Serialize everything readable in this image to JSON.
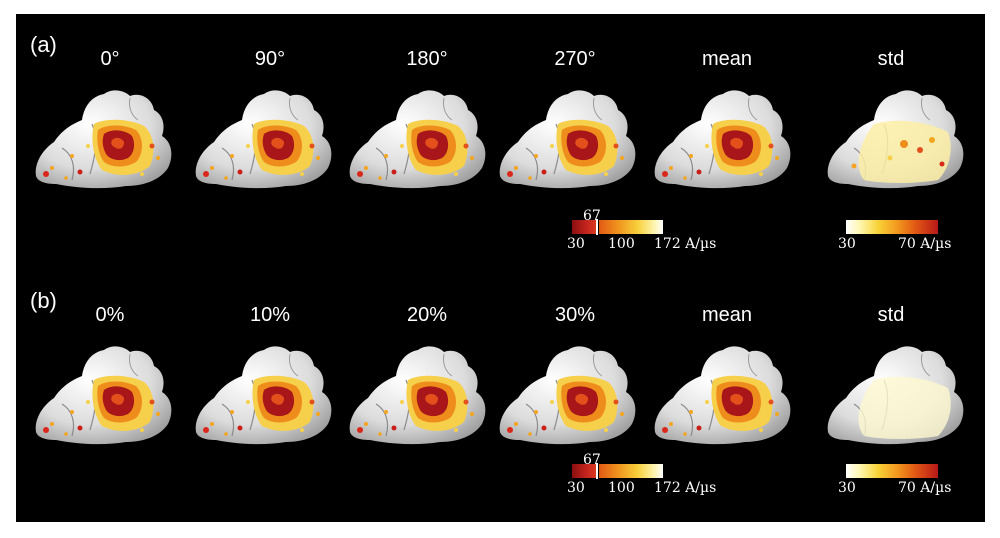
{
  "figure": {
    "rows": [
      {
        "label": "(a)",
        "columns": [
          "0°",
          "90°",
          "180°",
          "270°",
          "mean",
          "std"
        ]
      },
      {
        "label": "(b)",
        "columns": [
          "0%",
          "10%",
          "20%",
          "30%",
          "mean",
          "std"
        ]
      }
    ],
    "colorbars": {
      "main": {
        "labels": {
          "low": "30",
          "split": "67",
          "mid": "100",
          "high": "172 A/µs"
        },
        "colors": [
          "#8a0f0f",
          "#d93a1f",
          "#f0941e",
          "#f8cf3a",
          "#ffffff"
        ]
      },
      "std": {
        "labels": {
          "low": "30",
          "high": "70 A/µs"
        },
        "colors": [
          "#ffffff",
          "#f8d237",
          "#e25a14",
          "#b81818"
        ]
      }
    },
    "colors": {
      "background": "#000000",
      "cortex": "#e8e8e8",
      "hotspot": "#b01c1c"
    }
  }
}
